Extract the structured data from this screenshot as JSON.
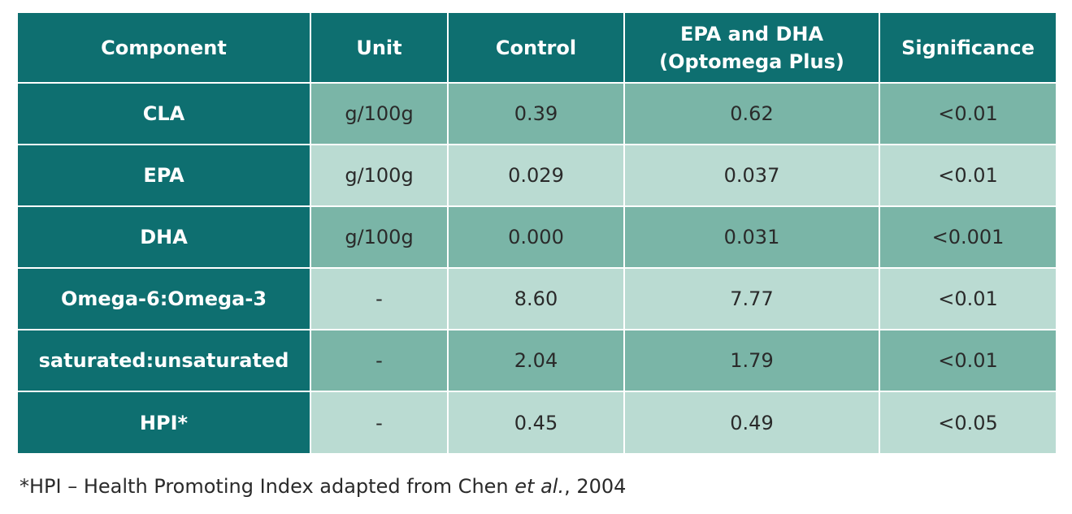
{
  "table": {
    "headers": [
      "Component",
      "Unit",
      "Control",
      "EPA and DHA\n(Optomega Plus)",
      "Significance"
    ],
    "rows": [
      {
        "component": "CLA",
        "unit": "g/100g",
        "control": "0.39",
        "epa_dha": "0.62",
        "significance": "<0.01"
      },
      {
        "component": "EPA",
        "unit": "g/100g",
        "control": "0.029",
        "epa_dha": "0.037",
        "significance": "<0.01"
      },
      {
        "component": "DHA",
        "unit": "g/100g",
        "control": "0.000",
        "epa_dha": "0.031",
        "significance": "<0.001"
      },
      {
        "component": "Omega-6:Omega-3",
        "unit": "-",
        "control": "8.60",
        "epa_dha": "7.77",
        "significance": "<0.01"
      },
      {
        "component": "saturated:unsaturated",
        "unit": "-",
        "control": "2.04",
        "epa_dha": "1.79",
        "significance": "<0.01"
      },
      {
        "component": "HPI*",
        "unit": "-",
        "control": "0.45",
        "epa_dha": "0.49",
        "significance": "<0.05"
      }
    ]
  },
  "footnote": {
    "prefix": "*HPI – Health Promoting Index adapted from Chen ",
    "italic": "et al.",
    "suffix": ", 2004"
  },
  "colors": {
    "header_bg": "#0e6f70",
    "row_dark": "#7ab5a7",
    "row_light": "#badbd2"
  }
}
